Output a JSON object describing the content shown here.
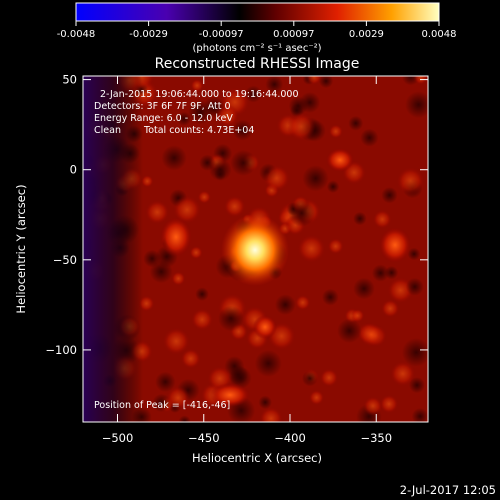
{
  "colorbar": {
    "tick_labels": [
      "-0.0048",
      "-0.0029",
      "-0.00097",
      "0.00097",
      "0.0029",
      "0.0048"
    ],
    "unit_label": "(photons cm⁻² s⁻¹ asec⁻²)",
    "colors": [
      "#0000ff",
      "#3300cc",
      "#000000",
      "#8b0000",
      "#ff4500",
      "#ffb000",
      "#ffffb0"
    ]
  },
  "plot": {
    "title": "Reconstructed RHESSI Image",
    "xlabel": "Heliocentric X (arcsec)",
    "ylabel": "Heliocentric Y (arcsec)",
    "x_ticks": [
      "-500",
      "-450",
      "-400",
      "-350"
    ],
    "y_ticks": [
      "50",
      "0",
      "-50",
      "-100"
    ],
    "xlim": [
      -520,
      -320
    ],
    "ylim": [
      -140,
      52
    ]
  },
  "annotations": {
    "time_range": "2-Jan-2015 19:06:44.000 to 19:16:44.000",
    "detectors": "Detectors: 3F 6F 7F 9F, Att 0",
    "energy": "Energy Range: 6.0 - 12.0 keV",
    "algorithm": "Clean",
    "counts": "Total counts: 4.73E+04",
    "peak": "Position of Peak = [-416,-46]"
  },
  "footer": {
    "timestamp": "2-Jul-2017 12:05"
  }
}
